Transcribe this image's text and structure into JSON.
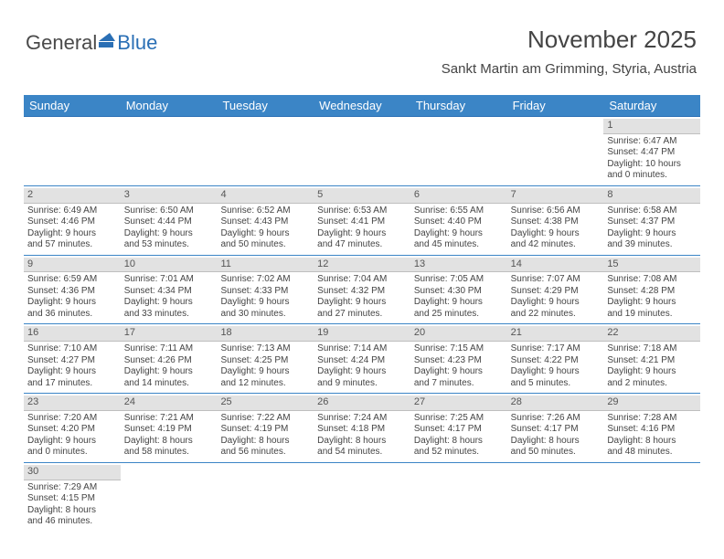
{
  "logo": {
    "part1": "General",
    "part2": "Blue"
  },
  "header": {
    "title": "November 2025",
    "subtitle": "Sankt Martin am Grimming, Styria, Austria"
  },
  "colors": {
    "header_bg": "#3b85c6",
    "header_text": "#ffffff",
    "daynum_bg": "#e2e2e2",
    "row_border": "#3b85c6",
    "body_text": "#444444"
  },
  "dayNames": [
    "Sunday",
    "Monday",
    "Tuesday",
    "Wednesday",
    "Thursday",
    "Friday",
    "Saturday"
  ],
  "weeks": [
    [
      null,
      null,
      null,
      null,
      null,
      null,
      {
        "n": "1",
        "sr": "Sunrise: 6:47 AM",
        "ss": "Sunset: 4:47 PM",
        "d1": "Daylight: 10 hours",
        "d2": "and 0 minutes."
      }
    ],
    [
      {
        "n": "2",
        "sr": "Sunrise: 6:49 AM",
        "ss": "Sunset: 4:46 PM",
        "d1": "Daylight: 9 hours",
        "d2": "and 57 minutes."
      },
      {
        "n": "3",
        "sr": "Sunrise: 6:50 AM",
        "ss": "Sunset: 4:44 PM",
        "d1": "Daylight: 9 hours",
        "d2": "and 53 minutes."
      },
      {
        "n": "4",
        "sr": "Sunrise: 6:52 AM",
        "ss": "Sunset: 4:43 PM",
        "d1": "Daylight: 9 hours",
        "d2": "and 50 minutes."
      },
      {
        "n": "5",
        "sr": "Sunrise: 6:53 AM",
        "ss": "Sunset: 4:41 PM",
        "d1": "Daylight: 9 hours",
        "d2": "and 47 minutes."
      },
      {
        "n": "6",
        "sr": "Sunrise: 6:55 AM",
        "ss": "Sunset: 4:40 PM",
        "d1": "Daylight: 9 hours",
        "d2": "and 45 minutes."
      },
      {
        "n": "7",
        "sr": "Sunrise: 6:56 AM",
        "ss": "Sunset: 4:38 PM",
        "d1": "Daylight: 9 hours",
        "d2": "and 42 minutes."
      },
      {
        "n": "8",
        "sr": "Sunrise: 6:58 AM",
        "ss": "Sunset: 4:37 PM",
        "d1": "Daylight: 9 hours",
        "d2": "and 39 minutes."
      }
    ],
    [
      {
        "n": "9",
        "sr": "Sunrise: 6:59 AM",
        "ss": "Sunset: 4:36 PM",
        "d1": "Daylight: 9 hours",
        "d2": "and 36 minutes."
      },
      {
        "n": "10",
        "sr": "Sunrise: 7:01 AM",
        "ss": "Sunset: 4:34 PM",
        "d1": "Daylight: 9 hours",
        "d2": "and 33 minutes."
      },
      {
        "n": "11",
        "sr": "Sunrise: 7:02 AM",
        "ss": "Sunset: 4:33 PM",
        "d1": "Daylight: 9 hours",
        "d2": "and 30 minutes."
      },
      {
        "n": "12",
        "sr": "Sunrise: 7:04 AM",
        "ss": "Sunset: 4:32 PM",
        "d1": "Daylight: 9 hours",
        "d2": "and 27 minutes."
      },
      {
        "n": "13",
        "sr": "Sunrise: 7:05 AM",
        "ss": "Sunset: 4:30 PM",
        "d1": "Daylight: 9 hours",
        "d2": "and 25 minutes."
      },
      {
        "n": "14",
        "sr": "Sunrise: 7:07 AM",
        "ss": "Sunset: 4:29 PM",
        "d1": "Daylight: 9 hours",
        "d2": "and 22 minutes."
      },
      {
        "n": "15",
        "sr": "Sunrise: 7:08 AM",
        "ss": "Sunset: 4:28 PM",
        "d1": "Daylight: 9 hours",
        "d2": "and 19 minutes."
      }
    ],
    [
      {
        "n": "16",
        "sr": "Sunrise: 7:10 AM",
        "ss": "Sunset: 4:27 PM",
        "d1": "Daylight: 9 hours",
        "d2": "and 17 minutes."
      },
      {
        "n": "17",
        "sr": "Sunrise: 7:11 AM",
        "ss": "Sunset: 4:26 PM",
        "d1": "Daylight: 9 hours",
        "d2": "and 14 minutes."
      },
      {
        "n": "18",
        "sr": "Sunrise: 7:13 AM",
        "ss": "Sunset: 4:25 PM",
        "d1": "Daylight: 9 hours",
        "d2": "and 12 minutes."
      },
      {
        "n": "19",
        "sr": "Sunrise: 7:14 AM",
        "ss": "Sunset: 4:24 PM",
        "d1": "Daylight: 9 hours",
        "d2": "and 9 minutes."
      },
      {
        "n": "20",
        "sr": "Sunrise: 7:15 AM",
        "ss": "Sunset: 4:23 PM",
        "d1": "Daylight: 9 hours",
        "d2": "and 7 minutes."
      },
      {
        "n": "21",
        "sr": "Sunrise: 7:17 AM",
        "ss": "Sunset: 4:22 PM",
        "d1": "Daylight: 9 hours",
        "d2": "and 5 minutes."
      },
      {
        "n": "22",
        "sr": "Sunrise: 7:18 AM",
        "ss": "Sunset: 4:21 PM",
        "d1": "Daylight: 9 hours",
        "d2": "and 2 minutes."
      }
    ],
    [
      {
        "n": "23",
        "sr": "Sunrise: 7:20 AM",
        "ss": "Sunset: 4:20 PM",
        "d1": "Daylight: 9 hours",
        "d2": "and 0 minutes."
      },
      {
        "n": "24",
        "sr": "Sunrise: 7:21 AM",
        "ss": "Sunset: 4:19 PM",
        "d1": "Daylight: 8 hours",
        "d2": "and 58 minutes."
      },
      {
        "n": "25",
        "sr": "Sunrise: 7:22 AM",
        "ss": "Sunset: 4:19 PM",
        "d1": "Daylight: 8 hours",
        "d2": "and 56 minutes."
      },
      {
        "n": "26",
        "sr": "Sunrise: 7:24 AM",
        "ss": "Sunset: 4:18 PM",
        "d1": "Daylight: 8 hours",
        "d2": "and 54 minutes."
      },
      {
        "n": "27",
        "sr": "Sunrise: 7:25 AM",
        "ss": "Sunset: 4:17 PM",
        "d1": "Daylight: 8 hours",
        "d2": "and 52 minutes."
      },
      {
        "n": "28",
        "sr": "Sunrise: 7:26 AM",
        "ss": "Sunset: 4:17 PM",
        "d1": "Daylight: 8 hours",
        "d2": "and 50 minutes."
      },
      {
        "n": "29",
        "sr": "Sunrise: 7:28 AM",
        "ss": "Sunset: 4:16 PM",
        "d1": "Daylight: 8 hours",
        "d2": "and 48 minutes."
      }
    ],
    [
      {
        "n": "30",
        "sr": "Sunrise: 7:29 AM",
        "ss": "Sunset: 4:15 PM",
        "d1": "Daylight: 8 hours",
        "d2": "and 46 minutes."
      },
      null,
      null,
      null,
      null,
      null,
      null
    ]
  ]
}
